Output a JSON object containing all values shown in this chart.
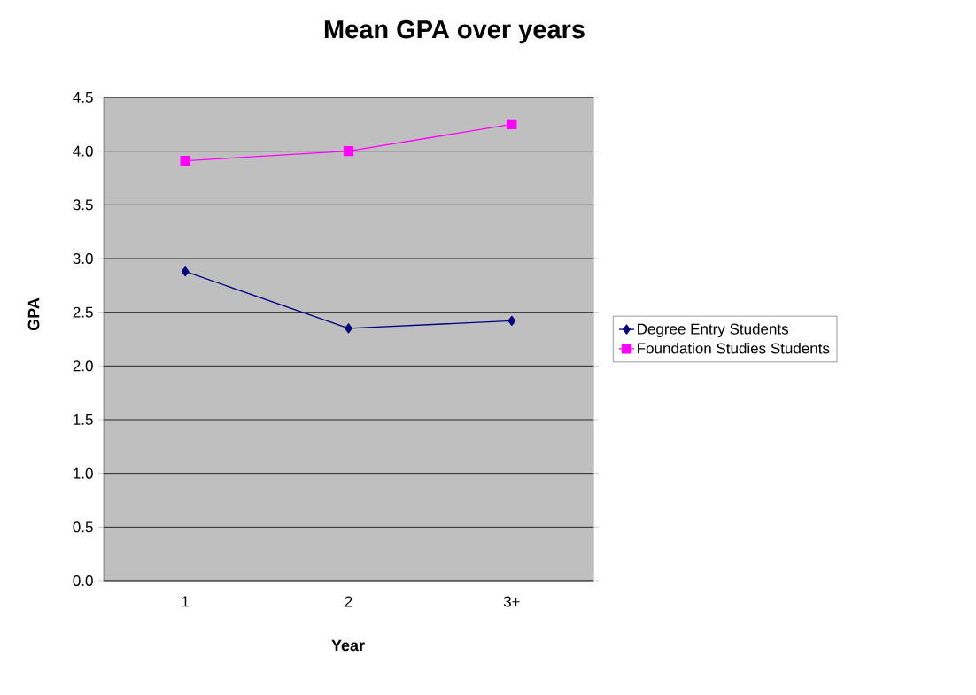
{
  "chart_data": {
    "type": "line",
    "title": "Mean GPA over years",
    "xlabel": "Year",
    "ylabel": "GPA",
    "categories": [
      "1",
      "2",
      "3+"
    ],
    "series": [
      {
        "name": "Degree Entry Students",
        "color": "#000080",
        "marker": "diamond",
        "values": [
          2.88,
          2.35,
          2.42
        ]
      },
      {
        "name": "Foundation Studies Students",
        "color": "#ff00ff",
        "marker": "square",
        "values": [
          3.91,
          4.0,
          4.25
        ]
      }
    ],
    "ylim": [
      0,
      4.5
    ],
    "yticks": [
      {
        "value": 0,
        "label": "0.0"
      },
      {
        "value": 0.5,
        "label": "0.5"
      },
      {
        "value": 1,
        "label": "1.0"
      },
      {
        "value": 1.5,
        "label": "1.5"
      },
      {
        "value": 2,
        "label": "2.0"
      },
      {
        "value": 2.5,
        "label": "2.5"
      },
      {
        "value": 3,
        "label": "3.0"
      },
      {
        "value": 3.5,
        "label": "3.5"
      },
      {
        "value": 4,
        "label": "4.0"
      },
      {
        "value": 4.5,
        "label": "4.5"
      }
    ],
    "grid": "y",
    "legend": "right",
    "line_style": "solid"
  }
}
